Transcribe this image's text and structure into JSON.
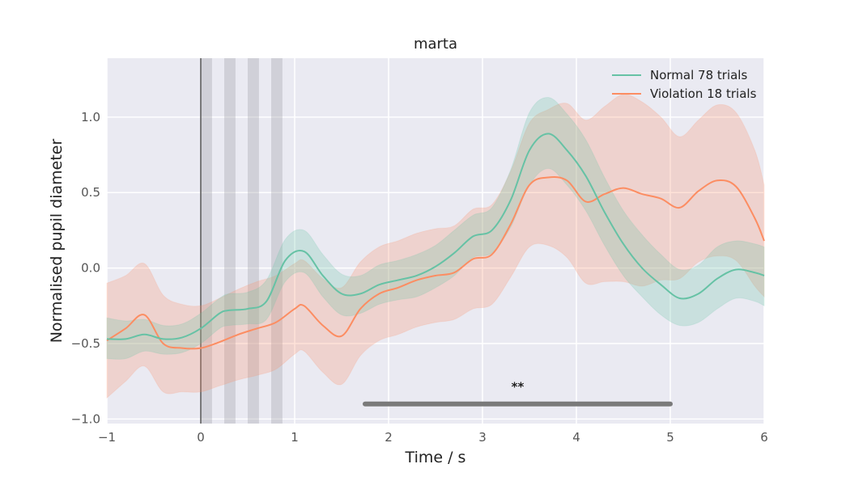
{
  "chart_data": {
    "type": "line",
    "title": "marta",
    "xlabel": "Time / s",
    "ylabel": "Normalised pupil diameter",
    "xlim": [
      -1,
      6
    ],
    "ylim": [
      -1.03,
      1.39
    ],
    "xticks": [
      -1,
      0,
      1,
      2,
      3,
      4,
      5,
      6
    ],
    "yticks": [
      -1.0,
      -0.5,
      0.0,
      0.5,
      1.0
    ],
    "xtick_labels": [
      "−1",
      "0",
      "1",
      "2",
      "3",
      "4",
      "5",
      "6"
    ],
    "ytick_labels": [
      "−1.0",
      "−0.5",
      "0.0",
      "0.5",
      "1.0"
    ],
    "grid": true,
    "legend_position": "top-right",
    "stimulus_onset_line": 0,
    "shaded_intervals": [
      [
        0,
        0.12
      ],
      [
        0.25,
        0.37
      ],
      [
        0.5,
        0.62
      ],
      [
        0.75,
        0.87
      ]
    ],
    "significance": {
      "x_start": 1.75,
      "x_end": 5.0,
      "y": -0.9,
      "label": "**"
    },
    "series": [
      {
        "name": "Normal 78 trials",
        "color": "#66c2a5",
        "x": [
          -1,
          -0.8,
          -0.6,
          -0.4,
          -0.2,
          0,
          0.2,
          0.3,
          0.5,
          0.7,
          0.9,
          1.1,
          1.3,
          1.5,
          1.7,
          1.9,
          2.1,
          2.3,
          2.5,
          2.7,
          2.9,
          3.1,
          3.3,
          3.5,
          3.7,
          3.9,
          4.1,
          4.3,
          4.5,
          4.7,
          4.9,
          5.1,
          5.3,
          5.5,
          5.7,
          5.9,
          6
        ],
        "y": [
          -0.47,
          -0.47,
          -0.44,
          -0.47,
          -0.46,
          -0.4,
          -0.3,
          -0.28,
          -0.27,
          -0.22,
          0.05,
          0.11,
          -0.05,
          -0.17,
          -0.17,
          -0.11,
          -0.08,
          -0.05,
          0.01,
          0.1,
          0.21,
          0.25,
          0.45,
          0.78,
          0.89,
          0.78,
          0.61,
          0.37,
          0.16,
          0.0,
          -0.11,
          -0.2,
          -0.17,
          -0.07,
          -0.01,
          -0.03,
          -0.05
        ],
        "upper": [
          -0.33,
          -0.35,
          -0.34,
          -0.38,
          -0.37,
          -0.3,
          -0.2,
          -0.17,
          -0.16,
          -0.08,
          0.19,
          0.25,
          0.09,
          -0.04,
          -0.05,
          0.02,
          0.05,
          0.09,
          0.15,
          0.25,
          0.35,
          0.4,
          0.65,
          1.03,
          1.13,
          1.02,
          0.85,
          0.6,
          0.38,
          0.22,
          0.09,
          -0.01,
          0.02,
          0.14,
          0.18,
          0.16,
          0.14
        ],
        "lower": [
          -0.6,
          -0.6,
          -0.55,
          -0.57,
          -0.56,
          -0.5,
          -0.4,
          -0.38,
          -0.37,
          -0.34,
          -0.09,
          -0.03,
          -0.19,
          -0.31,
          -0.3,
          -0.24,
          -0.21,
          -0.19,
          -0.13,
          -0.05,
          0.07,
          0.1,
          0.27,
          0.55,
          0.66,
          0.55,
          0.38,
          0.15,
          -0.05,
          -0.19,
          -0.31,
          -0.38,
          -0.36,
          -0.27,
          -0.2,
          -0.22,
          -0.25
        ]
      },
      {
        "name": "Violation 18 trials",
        "color": "#fc8d62",
        "x": [
          -1,
          -0.8,
          -0.6,
          -0.4,
          -0.2,
          0,
          0.2,
          0.4,
          0.6,
          0.8,
          1.0,
          1.1,
          1.3,
          1.5,
          1.7,
          1.9,
          2.1,
          2.3,
          2.5,
          2.7,
          2.9,
          3.1,
          3.3,
          3.5,
          3.7,
          3.9,
          4.1,
          4.3,
          4.5,
          4.7,
          4.9,
          5.1,
          5.3,
          5.5,
          5.7,
          5.9,
          6
        ],
        "y": [
          -0.48,
          -0.4,
          -0.31,
          -0.5,
          -0.53,
          -0.53,
          -0.49,
          -0.44,
          -0.4,
          -0.36,
          -0.27,
          -0.25,
          -0.38,
          -0.45,
          -0.27,
          -0.17,
          -0.13,
          -0.08,
          -0.05,
          -0.03,
          0.06,
          0.09,
          0.29,
          0.55,
          0.6,
          0.58,
          0.44,
          0.49,
          0.53,
          0.49,
          0.46,
          0.4,
          0.51,
          0.58,
          0.54,
          0.33,
          0.18
        ],
        "upper": [
          -0.1,
          -0.05,
          0.03,
          -0.18,
          -0.24,
          -0.25,
          -0.2,
          -0.14,
          -0.09,
          -0.05,
          0.03,
          0.05,
          -0.07,
          -0.13,
          0.04,
          0.14,
          0.18,
          0.23,
          0.26,
          0.28,
          0.39,
          0.42,
          0.64,
          0.96,
          1.05,
          1.09,
          0.98,
          1.07,
          1.15,
          1.1,
          1.0,
          0.87,
          0.98,
          1.08,
          1.03,
          0.78,
          0.55
        ],
        "lower": [
          -0.86,
          -0.75,
          -0.65,
          -0.82,
          -0.82,
          -0.82,
          -0.78,
          -0.74,
          -0.71,
          -0.67,
          -0.57,
          -0.55,
          -0.69,
          -0.77,
          -0.58,
          -0.48,
          -0.44,
          -0.39,
          -0.36,
          -0.34,
          -0.27,
          -0.24,
          -0.06,
          0.14,
          0.15,
          0.07,
          -0.1,
          -0.09,
          -0.09,
          -0.12,
          -0.08,
          -0.07,
          0.04,
          0.08,
          0.05,
          -0.12,
          -0.19
        ]
      }
    ]
  }
}
